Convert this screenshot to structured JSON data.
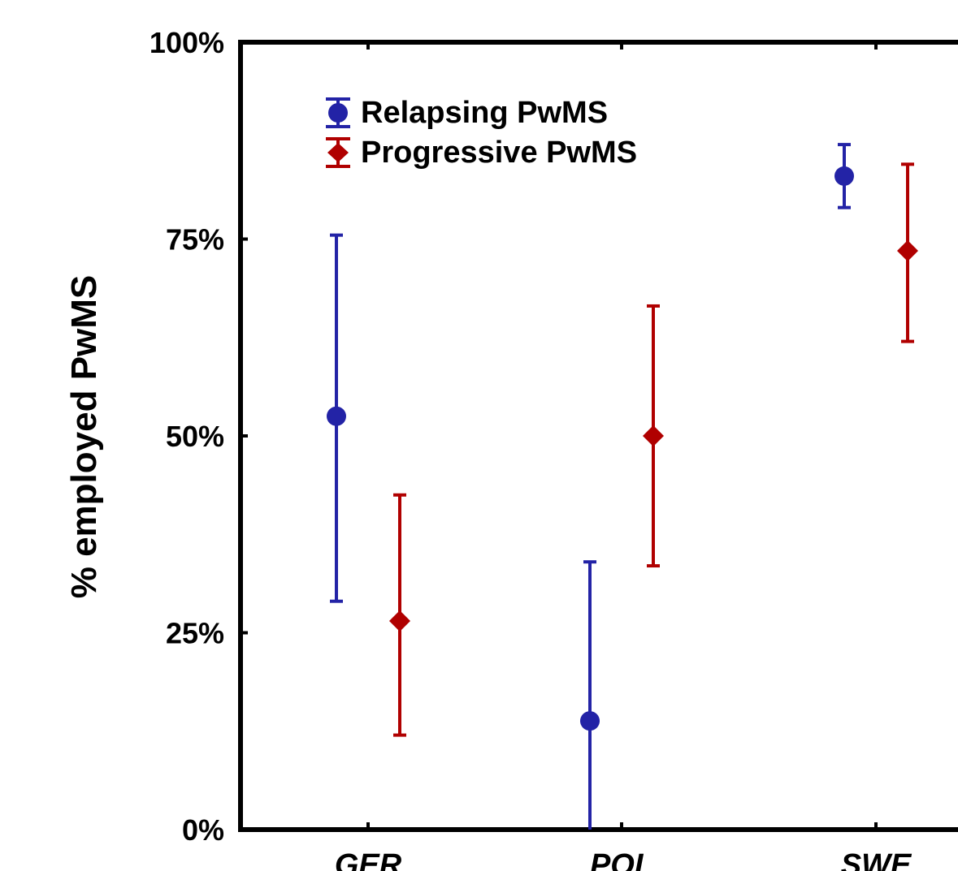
{
  "chart_data": {
    "type": "scatter",
    "categories": [
      "GER",
      "POL",
      "SWE"
    ],
    "ylabel": "% employed PwMS",
    "ylim": [
      0,
      100
    ],
    "y_ticks": [
      "0%",
      "25%",
      "50%",
      "75%",
      "100%"
    ],
    "grid": false,
    "legend_position": "top-left",
    "series": [
      {
        "name": "Relapsing PwMS",
        "marker": "circle",
        "color": "#2323a6",
        "values": [
          52.5,
          13.8,
          83.0
        ],
        "error_low": [
          29.0,
          0.0,
          79.0
        ],
        "error_high": [
          75.5,
          34.0,
          87.0
        ]
      },
      {
        "name": "Progressive PwMS",
        "marker": "diamond",
        "color": "#b00000",
        "values": [
          26.5,
          50.0,
          73.5
        ],
        "error_low": [
          12.0,
          33.5,
          62.0
        ],
        "error_high": [
          42.5,
          66.5,
          84.5
        ]
      }
    ]
  }
}
